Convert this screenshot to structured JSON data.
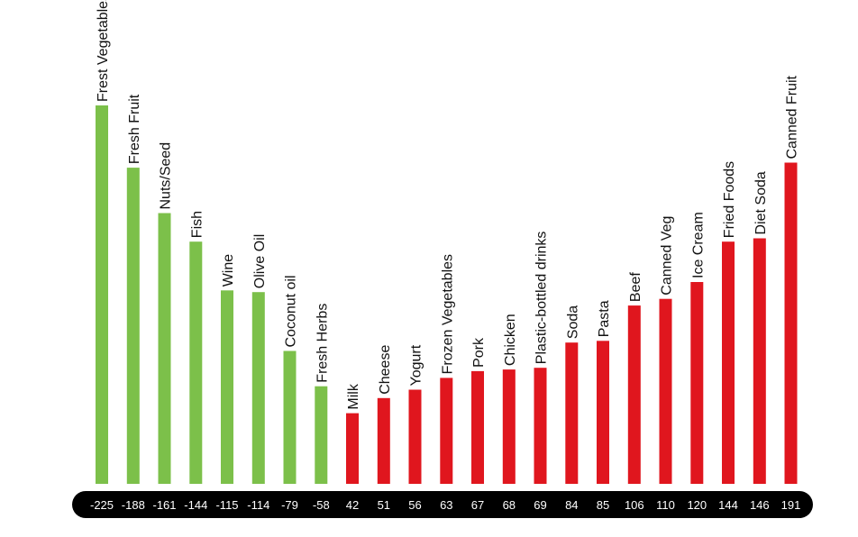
{
  "colors": {
    "positive": "#7cc04a",
    "negative": "#e0161e",
    "strip": "#000000",
    "strip_text": "#ffffff",
    "label_text": "#111111",
    "background": "#ffffff"
  },
  "chart_data": {
    "type": "bar",
    "categories": [
      "Frest Vegetables",
      "Fresh Fruit",
      "Nuts/Seed",
      "Fish",
      "Wine",
      "Olive Oil",
      "Coconut oil",
      "Fresh Herbs",
      "Milk",
      "Cheese",
      "Yogurt",
      "Frozen Vegetables",
      "Pork",
      "Chicken",
      "Plastic-bottled drinks",
      "Soda",
      "Pasta",
      "Beef",
      "Canned Veg",
      "Ice Cream",
      "Fried Foods",
      "Diet Soda",
      "Canned Fruit"
    ],
    "values": [
      -225,
      -188,
      -161,
      -144,
      -115,
      -114,
      -79,
      -58,
      42,
      51,
      56,
      63,
      67,
      68,
      69,
      84,
      85,
      106,
      110,
      120,
      144,
      146,
      191
    ],
    "value_labels": [
      "-225",
      "-188",
      "-161",
      "-144",
      "-115",
      "-114",
      "-79",
      "-58",
      "42",
      "51",
      "56",
      "63",
      "67",
      "68",
      "69",
      "84",
      "85",
      "106",
      "110",
      "120",
      "144",
      "146",
      "191"
    ],
    "bar_direction": "all bars drawn upward; height proportional to magnitude",
    "title": "",
    "xlabel": "",
    "ylabel": "",
    "grid": false,
    "legend": "none"
  }
}
